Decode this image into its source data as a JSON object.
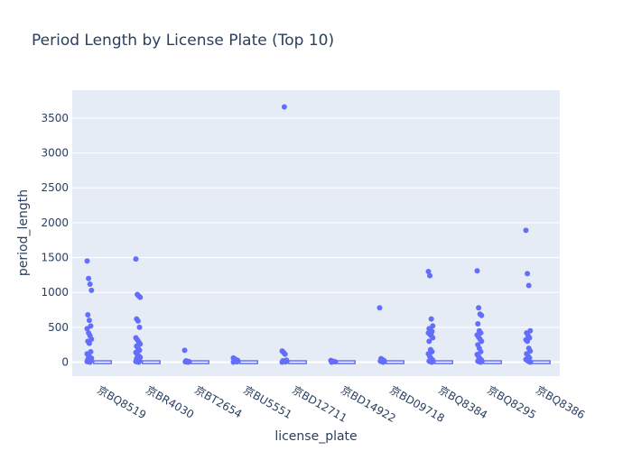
{
  "chart_data": {
    "type": "box-strip",
    "title": "Period Length by License Plate (Top 10)",
    "xlabel": "license_plate",
    "ylabel": "period_length",
    "ylim": [
      -200,
      3900
    ],
    "yticks": [
      0,
      500,
      1000,
      1500,
      2000,
      2500,
      3000,
      3500
    ],
    "grid": true,
    "colors": {
      "points": "#636efa",
      "plot_bg": "#e5ecf6",
      "grid": "#ffffff",
      "text": "#2a3f5f"
    },
    "categories": [
      "京BQ8519",
      "京BR4030",
      "京BT2654",
      "京BU5551",
      "京BD12711",
      "京BD14922",
      "京BD09718",
      "京BQ8384",
      "京BQ8295",
      "京BQ8386"
    ],
    "series": [
      {
        "category": "京BQ8519",
        "points": [
          1450,
          1200,
          1120,
          1030,
          680,
          600,
          520,
          480,
          420,
          380,
          330,
          300,
          270,
          150,
          120,
          90,
          70,
          55,
          40,
          30,
          20,
          10,
          5,
          0
        ]
      },
      {
        "category": "京BR4030",
        "points": [
          1480,
          970,
          950,
          930,
          620,
          590,
          500,
          350,
          320,
          290,
          260,
          230,
          200,
          170,
          140,
          110,
          90,
          70,
          50,
          35,
          20,
          10,
          5,
          0
        ]
      },
      {
        "category": "京BT2654",
        "points": [
          170,
          20,
          12,
          8,
          5,
          3,
          0
        ]
      },
      {
        "category": "京BU5551",
        "points": [
          60,
          45,
          35,
          25,
          18,
          12,
          6,
          0
        ]
      },
      {
        "category": "京BD12711",
        "points": [
          160,
          140,
          115,
          30,
          20,
          12,
          6,
          0
        ]
      },
      {
        "category": "京BD14922",
        "points": [
          25,
          15,
          10,
          5,
          0
        ]
      },
      {
        "category": "京BD09718",
        "points": [
          780,
          50,
          35,
          25,
          15,
          8,
          0
        ]
      },
      {
        "category": "京BQ8384",
        "points": [
          1300,
          1240,
          620,
          520,
          480,
          460,
          440,
          420,
          400,
          380,
          350,
          300,
          180,
          150,
          120,
          80,
          50,
          30,
          15,
          5,
          0
        ]
      },
      {
        "category": "京BQ8295",
        "points": [
          1310,
          780,
          690,
          670,
          550,
          450,
          420,
          390,
          360,
          330,
          300,
          250,
          200,
          150,
          110,
          80,
          50,
          30,
          15,
          5,
          0
        ]
      },
      {
        "category": "京BQ8386",
        "points": [
          1890,
          1270,
          1100,
          450,
          420,
          380,
          350,
          320,
          300,
          200,
          160,
          120,
          90,
          60,
          40,
          25,
          10,
          0
        ]
      }
    ],
    "outlier_extra": {
      "category": "京BD12711",
      "value": 3660
    }
  }
}
